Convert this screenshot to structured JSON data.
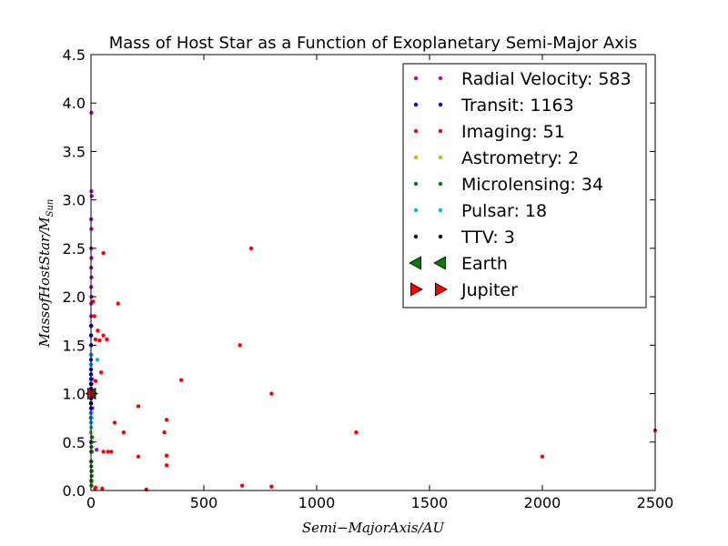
{
  "chart_data": {
    "type": "scatter",
    "title": "Mass of Host Star as a Function of Exoplanetary Semi-Major Axis",
    "xlabel": "Semi−MajorAxis/AU",
    "ylabel_main": "MassofHostStar/M",
    "ylabel_sub": "Sun",
    "xlim": [
      0,
      2500
    ],
    "ylim": [
      0,
      4.5
    ],
    "xticks": [
      "0",
      "500",
      "1000",
      "1500",
      "2000",
      "2500"
    ],
    "yticks": [
      "0.0",
      "0.5",
      "1.0",
      "1.5",
      "2.0",
      "2.5",
      "3.0",
      "3.5",
      "4.0",
      "4.5"
    ],
    "grid": false,
    "legend_position": "top-right",
    "series": [
      {
        "name": "Radial Velocity: 583",
        "color": "#bf00bf",
        "marker": "dot",
        "points": [
          [
            2,
            3.9
          ],
          [
            2,
            3.09
          ],
          [
            3,
            3.04
          ],
          [
            1,
            2.8
          ],
          [
            2,
            2.7
          ],
          [
            1,
            2.5
          ],
          [
            2,
            2.4
          ],
          [
            1,
            2.3
          ],
          [
            2,
            2.2
          ],
          [
            1,
            2.1
          ],
          [
            2,
            2.0
          ],
          [
            1,
            1.93
          ],
          [
            1,
            1.8
          ],
          [
            2,
            1.7
          ],
          [
            1,
            1.6
          ],
          [
            1,
            1.5
          ],
          [
            2,
            1.4
          ],
          [
            1,
            1.3
          ],
          [
            1,
            1.2
          ],
          [
            2,
            1.1
          ],
          [
            1,
            1.05
          ],
          [
            1,
            0.95
          ],
          [
            1,
            0.9
          ],
          [
            2,
            0.8
          ],
          [
            1,
            0.7
          ],
          [
            1,
            0.6
          ],
          [
            2,
            0.5
          ],
          [
            1,
            0.4
          ],
          [
            1,
            0.3
          ],
          [
            2,
            0.2
          ],
          [
            1,
            0.1
          ],
          [
            25,
            0.42
          ],
          [
            4,
            1.15
          ],
          [
            6,
            0.85
          ]
        ]
      },
      {
        "name": "Transit: 1163",
        "color": "#0000ff",
        "marker": "dot",
        "points": [
          [
            0.05,
            1.0
          ],
          [
            0.05,
            1.1
          ],
          [
            0.05,
            0.9
          ],
          [
            0.05,
            1.2
          ],
          [
            0.05,
            0.8
          ],
          [
            0.1,
            1.3
          ],
          [
            0.05,
            0.7
          ],
          [
            0.1,
            1.4
          ],
          [
            0.05,
            0.6
          ],
          [
            0.05,
            1.5
          ],
          [
            0.1,
            0.5
          ],
          [
            0.05,
            1.6
          ],
          [
            0.05,
            1.7
          ],
          [
            0.1,
            0.95
          ],
          [
            0.05,
            1.05
          ],
          [
            0.05,
            1.15
          ],
          [
            0.1,
            0.85
          ],
          [
            0.05,
            0.75
          ],
          [
            0.1,
            1.25
          ],
          [
            0.05,
            1.35
          ]
        ]
      },
      {
        "name": "Imaging: 51",
        "color": "#ff0000",
        "marker": "dot",
        "points": [
          [
            710,
            2.5
          ],
          [
            55,
            2.45
          ],
          [
            120,
            1.93
          ],
          [
            30,
            1.65
          ],
          [
            55,
            1.6
          ],
          [
            70,
            1.56
          ],
          [
            20,
            1.56
          ],
          [
            38,
            1.55
          ],
          [
            660,
            1.5
          ],
          [
            45,
            1.22
          ],
          [
            400,
            1.14
          ],
          [
            20,
            1.13
          ],
          [
            210,
            0.87
          ],
          [
            800,
            1.0
          ],
          [
            105,
            0.7
          ],
          [
            335,
            0.73
          ],
          [
            145,
            0.6
          ],
          [
            325,
            0.6
          ],
          [
            1175,
            0.6
          ],
          [
            2500,
            0.62
          ],
          [
            55,
            0.4
          ],
          [
            75,
            0.4
          ],
          [
            90,
            0.4
          ],
          [
            210,
            0.35
          ],
          [
            335,
            0.36
          ],
          [
            2000,
            0.35
          ],
          [
            335,
            0.26
          ],
          [
            670,
            0.05
          ],
          [
            800,
            0.04
          ],
          [
            245,
            0.01
          ],
          [
            50,
            0.02
          ],
          [
            20,
            0.03
          ],
          [
            15,
            1.8
          ],
          [
            10,
            1.95
          ],
          [
            18,
            0.02
          ]
        ]
      },
      {
        "name": "Astrometry: 2",
        "color": "#bfbf00",
        "marker": "dot",
        "points": [
          [
            1.5,
            0.6
          ],
          [
            3,
            0.09
          ]
        ]
      },
      {
        "name": "Microlensing: 34",
        "color": "#008000",
        "marker": "dot",
        "points": [
          [
            2,
            0.1
          ],
          [
            3,
            0.2
          ],
          [
            1,
            0.3
          ],
          [
            2.5,
            0.5
          ],
          [
            4,
            0.4
          ],
          [
            2,
            0.05
          ],
          [
            3,
            0.15
          ],
          [
            1.5,
            0.25
          ],
          [
            5,
            0.55
          ],
          [
            2,
            0.45
          ]
        ]
      },
      {
        "name": "Pulsar: 18",
        "color": "#00bfbf",
        "marker": "dot",
        "points": [
          [
            28,
            1.35
          ],
          [
            1,
            1.4
          ],
          [
            0.5,
            1.3
          ],
          [
            2,
            0.8
          ],
          [
            1,
            0.65
          ],
          [
            0.5,
            0.7
          ],
          [
            3,
            0.75
          ]
        ]
      },
      {
        "name": "TTV: 3",
        "color": "#000000",
        "marker": "dot",
        "points": [
          [
            0.1,
            1.0
          ],
          [
            0.2,
            0.9
          ],
          [
            0.15,
            1.1
          ]
        ]
      },
      {
        "name": "Earth",
        "color": "#008000",
        "marker": "triangle-left",
        "points": [
          [
            1,
            1.0
          ]
        ]
      },
      {
        "name": "Jupiter",
        "color": "#ff0000",
        "marker": "triangle-right",
        "points": [
          [
            5.2,
            1.0
          ]
        ]
      }
    ]
  }
}
